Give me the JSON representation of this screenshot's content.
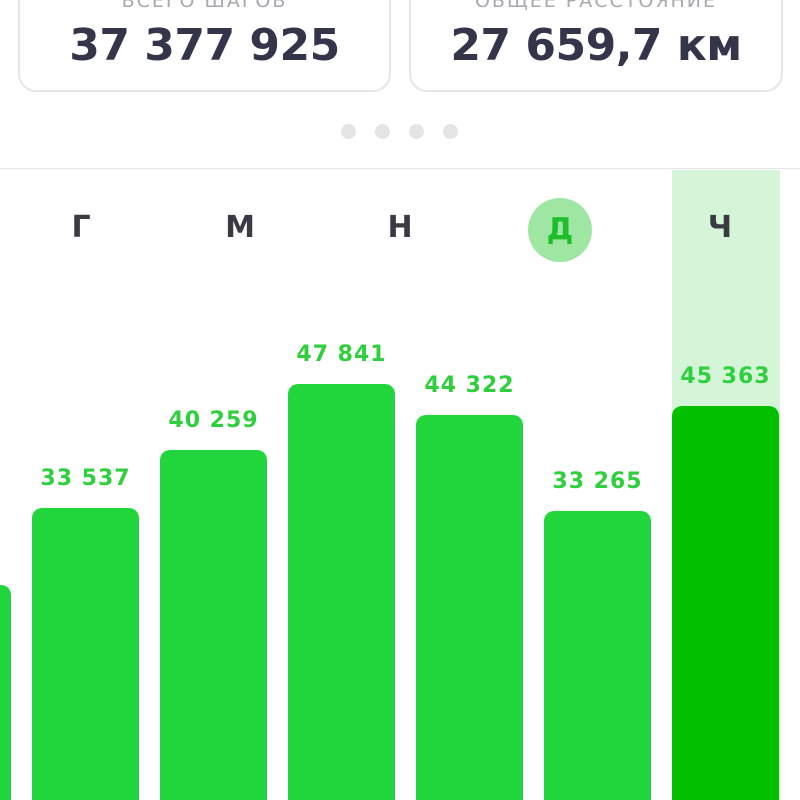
{
  "summary": {
    "total_steps": {
      "label": "ВСЕГО ШАГОВ",
      "value": "37 377 925"
    },
    "total_distance": {
      "label": "ОБЩЕЕ РАССТОЯНИЕ",
      "value": "27 659,7 км"
    }
  },
  "pager": {
    "count": 4,
    "active_index": 2
  },
  "colors": {
    "bar": "#21d63b",
    "bar_current": "#00c000",
    "label": "#2fcf3d",
    "highlight": "#d5f5d8",
    "selected_day_bg": "#9ee6a2"
  },
  "chart_data": {
    "type": "bar",
    "title": "",
    "xlabel": "",
    "ylabel": "",
    "days": [
      {
        "key": "g",
        "label": "Г"
      },
      {
        "key": "m",
        "label": "М"
      },
      {
        "key": "n",
        "label": "Н"
      },
      {
        "key": "d",
        "label": "Д",
        "selected": true
      },
      {
        "key": "ch",
        "label": "Ч",
        "current": true
      }
    ],
    "bars": [
      {
        "value": 33537,
        "label": "33 537"
      },
      {
        "value": 40259,
        "label": "40 259"
      },
      {
        "value": 47841,
        "label": "47 841"
      },
      {
        "value": 44322,
        "label": "44 322"
      },
      {
        "value": 33265,
        "label": "33 265"
      },
      {
        "value": 45363,
        "label": "45 363",
        "current": true
      }
    ],
    "partial_left_bar": true
  }
}
